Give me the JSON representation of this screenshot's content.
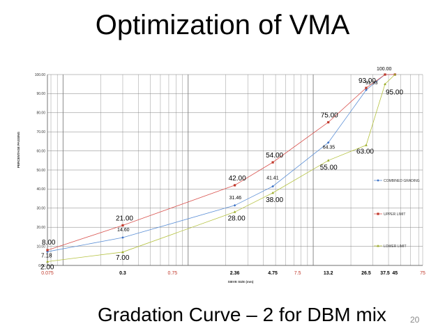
{
  "slide": {
    "title": "Optimization of VMA",
    "subtitle": "Gradation Curve – 2 for DBM mix",
    "page_number": "20"
  },
  "colors": {
    "upper": "#d9534f",
    "combined": "#5b8fd6",
    "lower": "#b5c240",
    "grid": "#7f7f7f",
    "marker_upper": "#c0392b",
    "marker_combined": "#3a6fc4",
    "marker_lower": "#9aaa2a"
  },
  "chart_data": {
    "type": "line",
    "title": "",
    "xlabel": "SIEVE SIZE (mm)",
    "ylabel": "PERCENTAGE PASSING",
    "ylim": [
      0,
      100
    ],
    "yticks": [
      "0.00",
      "10.00",
      "20.00",
      "30.00",
      "40.00",
      "50.00",
      "60.00",
      "70.00",
      "80.00",
      "90.00",
      "100.00"
    ],
    "x_tick_labels": [
      {
        "label": "0.075",
        "x": 0.075,
        "style": "red"
      },
      {
        "label": "0.3",
        "x": 0.3,
        "style": "bold"
      },
      {
        "label": "0.75",
        "x": 0.75,
        "style": "red"
      },
      {
        "label": "2.36",
        "x": 2.36,
        "style": "bold"
      },
      {
        "label": "4.75",
        "x": 4.75,
        "style": "bold"
      },
      {
        "label": "7.5",
        "x": 7.5,
        "style": "red"
      },
      {
        "label": "13.2",
        "x": 13.2,
        "style": "bold"
      },
      {
        "label": "26.5",
        "x": 26.5,
        "style": "bold"
      },
      {
        "label": "37.5",
        "x": 37.5,
        "style": "bold"
      },
      {
        "label": "45",
        "x": 45,
        "style": "bold"
      },
      {
        "label": "75",
        "x": 75,
        "style": "red"
      }
    ],
    "series": [
      {
        "name": "COMBINED GRADING",
        "key": "combined",
        "x": [
          0.075,
          0.3,
          2.36,
          4.75,
          13.2,
          26.5,
          37.5,
          45
        ],
        "y": [
          7.18,
          14.6,
          31.46,
          41.41,
          64.35,
          91.93,
          100,
          100
        ],
        "labels": [
          "7.18",
          "14.60",
          "31.46",
          "41.41",
          "64.35",
          "91.93",
          "",
          ""
        ]
      },
      {
        "name": "UPPER LIMIT",
        "key": "upper",
        "x": [
          0.075,
          0.3,
          2.36,
          4.75,
          13.2,
          26.5,
          37.5,
          45
        ],
        "y": [
          8,
          21,
          42,
          54,
          75,
          93,
          100,
          100
        ],
        "labels": [
          "8.00",
          "21.00",
          "42.00",
          "54.00",
          "75.00",
          "93.00",
          "100.00",
          ""
        ]
      },
      {
        "name": "LOWER LIMIT",
        "key": "lower",
        "x": [
          0.075,
          0.3,
          2.36,
          4.75,
          13.2,
          26.5,
          37.5,
          45
        ],
        "y": [
          2,
          7,
          28,
          38,
          55,
          63,
          95,
          100
        ],
        "labels": [
          "2.00",
          "7.00",
          "28.00",
          "38.00",
          "55.00",
          "63.00",
          "95.00",
          ""
        ]
      }
    ]
  }
}
